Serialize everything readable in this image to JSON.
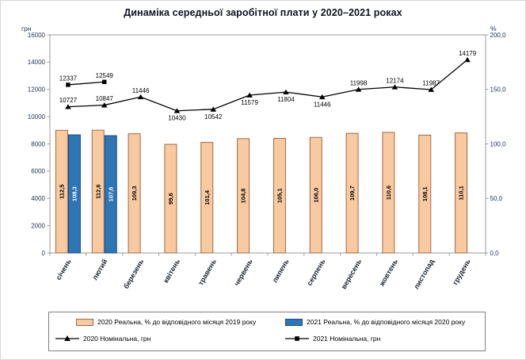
{
  "title": "Динаміка середньої заробітної плати у 2020–2021 роках",
  "chart_data": {
    "type": "combo (grouped bar + line, dual axis)",
    "categories": [
      "січень",
      "лютий",
      "березень",
      "квітень",
      "травень",
      "червень",
      "липень",
      "серпень",
      "вересень",
      "жовтень",
      "листопад",
      "грудень"
    ],
    "left_axis": {
      "unit": "грн",
      "min": 0,
      "max": 16000,
      "step": 2000,
      "tick_labels": [
        "0",
        "2000",
        "4000",
        "6000",
        "8000",
        "10000",
        "12000",
        "14000",
        "16000"
      ]
    },
    "right_axis": {
      "unit": "%",
      "min": 0,
      "max": 200,
      "step": 50,
      "tick_labels": [
        "0,0",
        "50,0",
        "100,0",
        "150,0",
        "200,0"
      ]
    },
    "bar_series": [
      {
        "name": "2020 Реальна, % до відповідного місяця 2019 року",
        "axis": "right",
        "color": "#F9C9A0",
        "border_color": "#9c6b4a",
        "label_color": "#000000",
        "values": [
          112.5,
          112.6,
          109.3,
          99.6,
          101.4,
          104.8,
          105.1,
          106.0,
          109.7,
          110.6,
          108.1,
          110.1
        ],
        "value_labels": [
          "112,5",
          "112,6",
          "109,3",
          "99,6",
          "101,4",
          "104,8",
          "105,1",
          "106,0",
          "109,7",
          "110,6",
          "108,1",
          "110,1"
        ]
      },
      {
        "name": "2021 Реальна, % до відповідного місяця 2020 року",
        "axis": "right",
        "color": "#2E75B6",
        "border_color": "#1F4E79",
        "label_color": "#FFFFFF",
        "values": [
          108.3,
          107.6,
          null,
          null,
          null,
          null,
          null,
          null,
          null,
          null,
          null,
          null
        ],
        "value_labels": [
          "108,3",
          "107,6",
          null,
          null,
          null,
          null,
          null,
          null,
          null,
          null,
          null,
          null
        ]
      }
    ],
    "line_series": [
      {
        "name": "2020 Номінальна, грн",
        "axis": "left",
        "marker": "triangle",
        "color": "#000000",
        "values": [
          10727,
          10847,
          11446,
          10430,
          10542,
          11579,
          11804,
          11446,
          11998,
          12174,
          11987,
          14179
        ],
        "point_labels": [
          "10727",
          "10847",
          "11446",
          "10430",
          "10542",
          "11579",
          "11804",
          "11446",
          "11998",
          "12174",
          "11987",
          "14179"
        ],
        "label_positions": [
          "above",
          "above",
          "above",
          "below",
          "below",
          "below",
          "below",
          "below",
          "above",
          "above",
          "above",
          "above"
        ]
      },
      {
        "name": "2021 Номінальна, грн",
        "axis": "left",
        "marker": "square",
        "color": "#000000",
        "values": [
          12337,
          12549,
          null,
          null,
          null,
          null,
          null,
          null,
          null,
          null,
          null,
          null
        ],
        "point_labels": [
          "12337",
          "12549",
          null,
          null,
          null,
          null,
          null,
          null,
          null,
          null,
          null,
          null
        ],
        "label_positions": [
          "above",
          "above",
          null,
          null,
          null,
          null,
          null,
          null,
          null,
          null,
          null,
          null
        ]
      }
    ]
  }
}
